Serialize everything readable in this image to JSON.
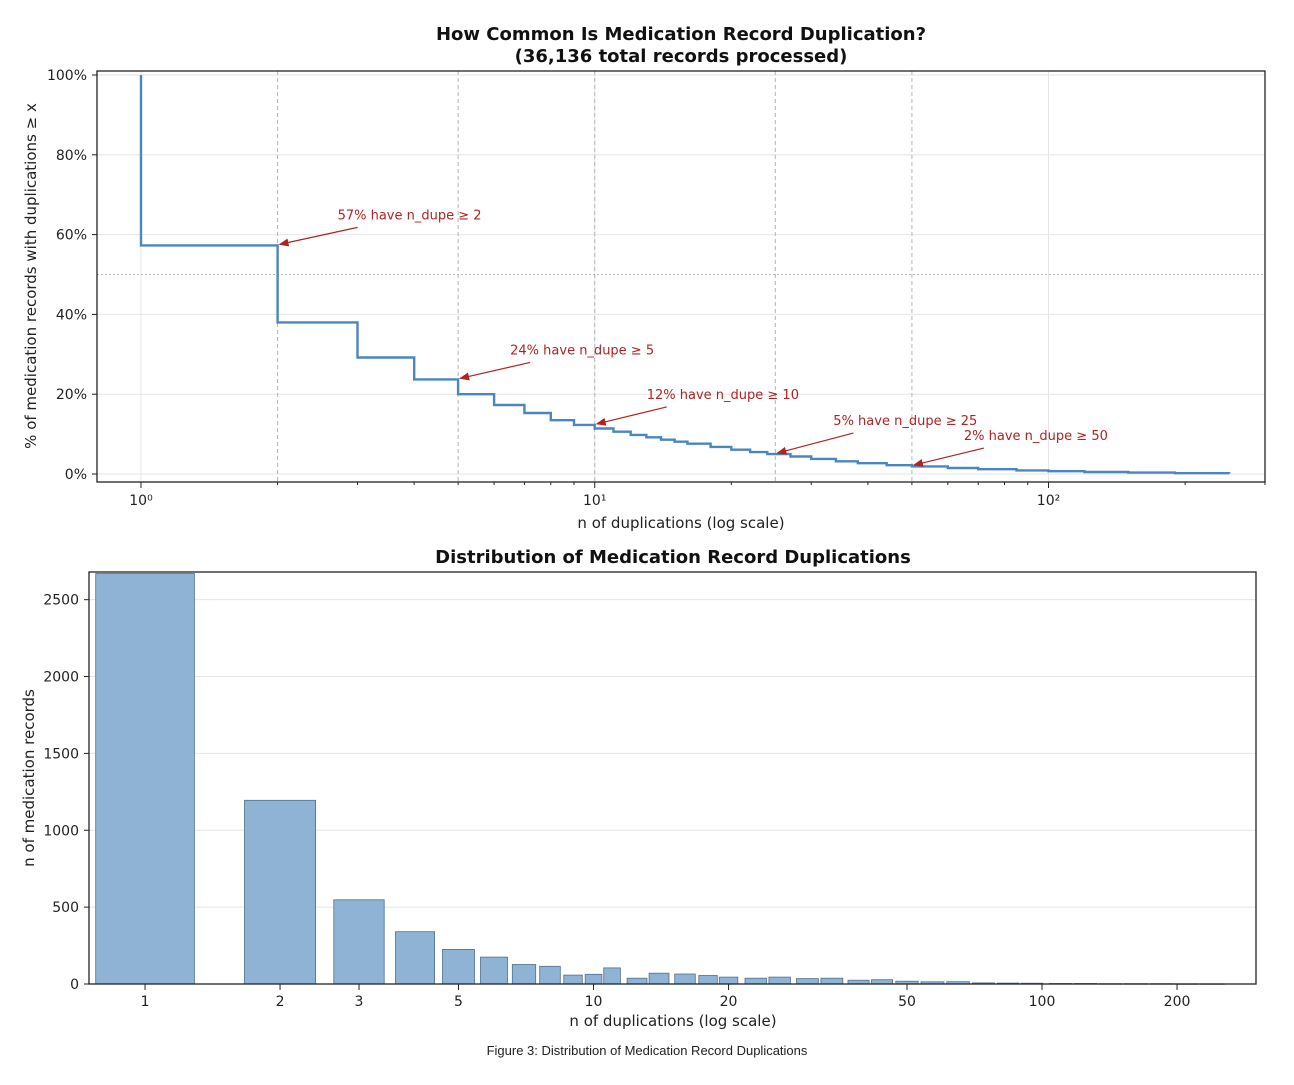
{
  "figure": {
    "caption": "Figure 3: Distribution of Medication Record Duplications"
  },
  "chart_data": [
    {
      "type": "line",
      "title": "How Common Is Medication Record Duplication?",
      "subtitle": "(36,136 total records processed)",
      "xlabel": "n of duplications (log scale)",
      "ylabel": "% of medication records with duplications ≥ x",
      "x_scale": "log",
      "xlim": [
        0.8,
        300
      ],
      "ylim": [
        -2,
        101
      ],
      "x_ticks": [
        1,
        10,
        100
      ],
      "x_tick_labels": [
        "10⁰",
        "10¹",
        "10²"
      ],
      "y_ticks": [
        0,
        20,
        40,
        60,
        80,
        100
      ],
      "y_tick_labels": [
        "0%",
        "20%",
        "40%",
        "60%",
        "80%",
        "100%"
      ],
      "grid": true,
      "vertical_reference_lines": [
        2,
        5,
        10,
        25,
        50
      ],
      "horizontal_reference_line": 50,
      "series": [
        {
          "color": "#4a86c0",
          "step": "post",
          "points": [
            [
              1,
              100
            ],
            [
              1,
              57.3
            ],
            [
              2,
              57.3
            ],
            [
              2,
              38
            ],
            [
              3,
              38
            ],
            [
              3,
              29.2
            ],
            [
              4,
              29.2
            ],
            [
              4,
              23.7
            ],
            [
              5,
              23.7
            ],
            [
              5,
              20
            ],
            [
              6,
              20
            ],
            [
              6,
              17.3
            ],
            [
              7,
              17.3
            ],
            [
              7,
              15.3
            ],
            [
              8,
              15.3
            ],
            [
              8,
              13.5
            ],
            [
              9,
              13.5
            ],
            [
              9,
              12.3
            ],
            [
              10,
              12.3
            ],
            [
              10,
              11.4
            ],
            [
              11,
              11.4
            ],
            [
              11,
              10.6
            ],
            [
              12,
              10.6
            ],
            [
              12,
              9.8
            ],
            [
              13,
              9.8
            ],
            [
              13,
              9.2
            ],
            [
              14,
              9.2
            ],
            [
              14,
              8.6
            ],
            [
              15,
              8.6
            ],
            [
              15,
              8.1
            ],
            [
              16,
              8.1
            ],
            [
              16,
              7.6
            ],
            [
              18,
              7.6
            ],
            [
              18,
              6.8
            ],
            [
              20,
              6.8
            ],
            [
              20,
              6.1
            ],
            [
              22,
              6.1
            ],
            [
              22,
              5.5
            ],
            [
              24,
              5.5
            ],
            [
              24,
              5.0
            ],
            [
              27,
              5.0
            ],
            [
              27,
              4.4
            ],
            [
              30,
              4.4
            ],
            [
              30,
              3.8
            ],
            [
              34,
              3.8
            ],
            [
              34,
              3.2
            ],
            [
              38,
              3.2
            ],
            [
              38,
              2.7
            ],
            [
              44,
              2.7
            ],
            [
              44,
              2.2
            ],
            [
              50,
              2.2
            ],
            [
              50,
              1.9
            ],
            [
              60,
              1.9
            ],
            [
              60,
              1.5
            ],
            [
              70,
              1.5
            ],
            [
              70,
              1.2
            ],
            [
              85,
              1.2
            ],
            [
              85,
              0.9
            ],
            [
              100,
              0.9
            ],
            [
              100,
              0.7
            ],
            [
              120,
              0.7
            ],
            [
              120,
              0.5
            ],
            [
              150,
              0.5
            ],
            [
              150,
              0.35
            ],
            [
              190,
              0.35
            ],
            [
              190,
              0.2
            ],
            [
              250,
              0.2
            ],
            [
              250,
              0.05
            ]
          ]
        }
      ],
      "annotations": [
        {
          "text": "57% have n_dupe ≥ 2",
          "x": 2,
          "y": 57.3
        },
        {
          "text": "24% have n_dupe ≥ 5",
          "x": 5,
          "y": 23.7
        },
        {
          "text": "12% have n_dupe ≥ 10",
          "x": 10,
          "y": 12.3
        },
        {
          "text": "5% have n_dupe ≥ 25",
          "x": 25,
          "y": 5.0
        },
        {
          "text": "2% have n_dupe ≥ 50",
          "x": 50,
          "y": 2.0
        }
      ],
      "annotation_color": "#b22222"
    },
    {
      "type": "bar",
      "title": "Distribution of Medication Record Duplications",
      "xlabel": "n of duplications (log scale)",
      "ylabel": "n of medication records",
      "x_scale": "log",
      "xlim": [
        0.75,
        300
      ],
      "ylim": [
        0,
        2680
      ],
      "x_ticks": [
        1,
        2,
        3,
        5,
        10,
        20,
        50,
        100,
        200
      ],
      "x_tick_labels": [
        "1",
        "2",
        "3",
        "5",
        "10",
        "20",
        "50",
        "100",
        "200"
      ],
      "y_ticks": [
        0,
        500,
        1000,
        1500,
        2000,
        2500
      ],
      "y_tick_labels": [
        "0",
        "500",
        "1000",
        "1500",
        "2000",
        "2500"
      ],
      "grid": true,
      "bar_color": "#8fb3d4",
      "bar_edge_color": "#4f6f8f",
      "bins": [
        {
          "x": 1,
          "value": 2670
        },
        {
          "x": 2,
          "value": 1195
        },
        {
          "x": 3,
          "value": 548
        },
        {
          "x": 4,
          "value": 340
        },
        {
          "x": 5,
          "value": 225
        },
        {
          "x": 6,
          "value": 175
        },
        {
          "x": 7,
          "value": 127
        },
        {
          "x": 8,
          "value": 115
        },
        {
          "x": 9,
          "value": 58
        },
        {
          "x": 10,
          "value": 63
        },
        {
          "x": 11,
          "value": 105
        },
        {
          "x": 12.5,
          "value": 38
        },
        {
          "x": 14,
          "value": 70
        },
        {
          "x": 16,
          "value": 65
        },
        {
          "x": 18,
          "value": 55
        },
        {
          "x": 20,
          "value": 45
        },
        {
          "x": 23,
          "value": 38
        },
        {
          "x": 26,
          "value": 45
        },
        {
          "x": 30,
          "value": 35
        },
        {
          "x": 34,
          "value": 38
        },
        {
          "x": 39,
          "value": 25
        },
        {
          "x": 44,
          "value": 28
        },
        {
          "x": 50,
          "value": 18
        },
        {
          "x": 57,
          "value": 14
        },
        {
          "x": 65,
          "value": 15
        },
        {
          "x": 74,
          "value": 7
        },
        {
          "x": 84,
          "value": 6
        },
        {
          "x": 95,
          "value": 5
        },
        {
          "x": 110,
          "value": 3
        },
        {
          "x": 125,
          "value": 3
        },
        {
          "x": 142,
          "value": 2
        },
        {
          "x": 162,
          "value": 2
        },
        {
          "x": 185,
          "value": 2
        },
        {
          "x": 210,
          "value": 1
        },
        {
          "x": 240,
          "value": 1
        }
      ]
    }
  ]
}
